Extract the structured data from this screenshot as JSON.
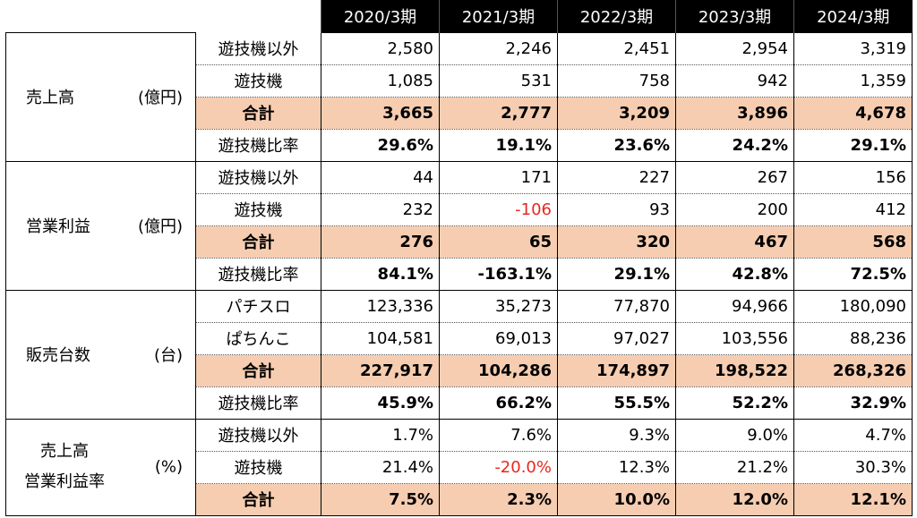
{
  "columns": [
    "2020/3期",
    "2021/3期",
    "2022/3期",
    "2023/3期",
    "2024/3期"
  ],
  "groups": [
    {
      "label": "売上高",
      "unit": "(億円)",
      "rows": [
        {
          "label": "遊技機以外",
          "values": [
            "2,580",
            "2,246",
            "2,451",
            "2,954",
            "3,319"
          ]
        },
        {
          "label": "遊技機",
          "values": [
            "1,085",
            "531",
            "758",
            "942",
            "1,359"
          ]
        },
        {
          "label": "合計",
          "values": [
            "3,665",
            "2,777",
            "3,209",
            "3,896",
            "4,678"
          ]
        },
        {
          "label": "遊技機比率",
          "values": [
            "29.6%",
            "19.1%",
            "23.6%",
            "24.2%",
            "29.1%"
          ]
        }
      ]
    },
    {
      "label": "営業利益",
      "unit": "(億円)",
      "rows": [
        {
          "label": "遊技機以外",
          "values": [
            "44",
            "171",
            "227",
            "267",
            "156"
          ]
        },
        {
          "label": "遊技機",
          "values": [
            "232",
            "-106",
            "93",
            "200",
            "412"
          ]
        },
        {
          "label": "合計",
          "values": [
            "276",
            "65",
            "320",
            "467",
            "568"
          ]
        },
        {
          "label": "遊技機比率",
          "values": [
            "84.1%",
            "-163.1%",
            "29.1%",
            "42.8%",
            "72.5%"
          ]
        }
      ]
    },
    {
      "label": "販売台数",
      "unit": "(台)",
      "rows": [
        {
          "label": "パチスロ",
          "values": [
            "123,336",
            "35,273",
            "77,870",
            "94,966",
            "180,090"
          ]
        },
        {
          "label": "ぱちんこ",
          "values": [
            "104,581",
            "69,013",
            "97,027",
            "103,556",
            "88,236"
          ]
        },
        {
          "label": "合計",
          "values": [
            "227,917",
            "104,286",
            "174,897",
            "198,522",
            "268,326"
          ]
        },
        {
          "label": "遊技機比率",
          "values": [
            "45.9%",
            "66.2%",
            "55.5%",
            "52.2%",
            "32.9%"
          ]
        }
      ]
    },
    {
      "label_line1": "売上高",
      "label_line2": "営業利益率",
      "unit": "(%)",
      "rows": [
        {
          "label": "遊技機以外",
          "values": [
            "1.7%",
            "7.6%",
            "9.3%",
            "9.0%",
            "4.7%"
          ]
        },
        {
          "label": "遊技機",
          "values": [
            "21.4%",
            "-20.0%",
            "12.3%",
            "21.2%",
            "30.3%"
          ]
        },
        {
          "label": "合計",
          "values": [
            "7.5%",
            "2.3%",
            "10.0%",
            "12.0%",
            "12.1%"
          ]
        }
      ]
    }
  ],
  "colors": {
    "header_bg": "#000000",
    "header_text": "#ffffff",
    "total_bg": "#f6cdb1",
    "negative": "#e8281e"
  }
}
